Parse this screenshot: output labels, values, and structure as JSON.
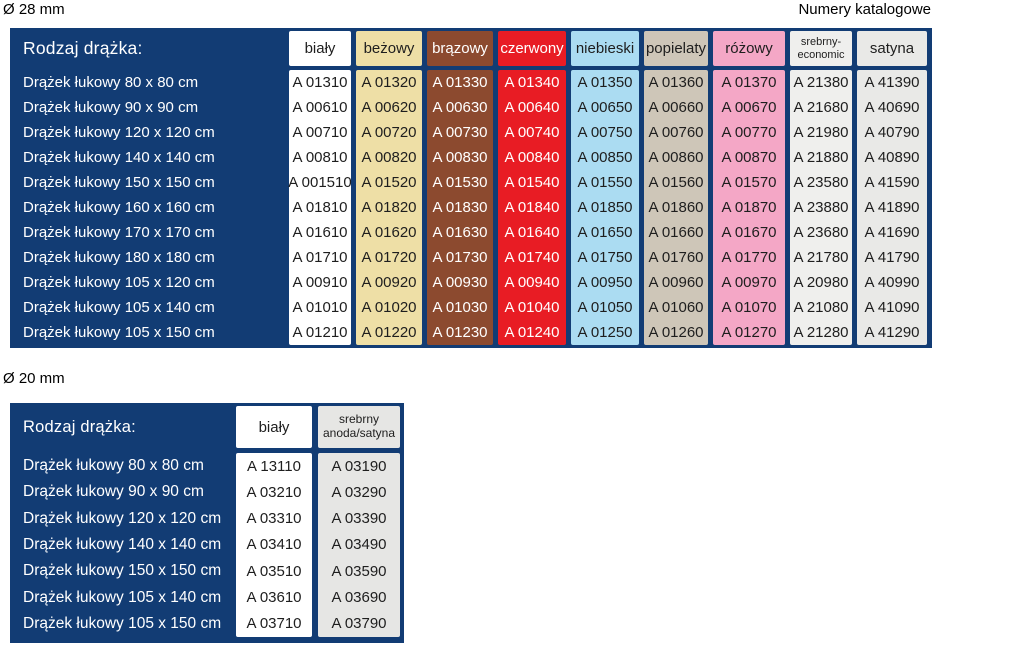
{
  "page": {
    "diameter_28_label": "Ø 28 mm",
    "diameter_20_label": "Ø 20 mm",
    "catalog_numbers_label": "Numery katalogowe"
  },
  "colors": {
    "table_background": "#123c74",
    "label_text": "#ffffff",
    "dark_cell_text": "#1e1e1e",
    "light_cell_text": "#ffffff"
  },
  "table_28mm": {
    "title": "Rodzaj drążka:",
    "row_labels": [
      "Drążek łukowy 80 x 80 cm",
      "Drążek łukowy 90 x 90 cm",
      "Drążek łukowy 120 x 120 cm",
      "Drążek łukowy 140 x 140 cm",
      "Drążek łukowy 150 x 150 cm",
      "Drążek łukowy 160 x 160 cm",
      "Drążek łukowy 170 x 170 cm",
      "Drążek łukowy 180 x 180 cm",
      "Drążek łukowy 105 x 120 cm",
      "Drążek łukowy 105 x 140 cm",
      "Drążek łukowy 105 x 150 cm"
    ],
    "columns": [
      {
        "id": "bialy",
        "label": "biały",
        "bg": "#ffffff",
        "text": "#1e1e1e",
        "small": false,
        "values": [
          "A 01310",
          "A 00610",
          "A 00710",
          "A 00810",
          "A 001510",
          "A 01810",
          "A 01610",
          "A 01710",
          "A 00910",
          "A 01010",
          "A 01210"
        ]
      },
      {
        "id": "bezowy",
        "label": "beżowy",
        "bg": "#eedfa6",
        "text": "#1e1e1e",
        "small": false,
        "values": [
          "A 01320",
          "A 00620",
          "A 00720",
          "A 00820",
          "A 01520",
          "A 01820",
          "A 01620",
          "A 01720",
          "A 00920",
          "A 01020",
          "A 01220"
        ]
      },
      {
        "id": "brazowy",
        "label": "brązowy",
        "bg": "#8c4a2f",
        "text": "#ffffff",
        "small": false,
        "values": [
          "A 01330",
          "A 00630",
          "A 00730",
          "A 00830",
          "A 01530",
          "A 01830",
          "A 01630",
          "A 01730",
          "A 00930",
          "A 01030",
          "A 01230"
        ]
      },
      {
        "id": "czerwony",
        "label": "czerwony",
        "bg": "#e81c24",
        "text": "#ffffff",
        "small": false,
        "values": [
          "A 01340",
          "A 00640",
          "A 00740",
          "A 00840",
          "A 01540",
          "A 01840",
          "A 01640",
          "A 01740",
          "A 00940",
          "A 01040",
          "A 01240"
        ]
      },
      {
        "id": "niebieski",
        "label": "niebieski",
        "bg": "#abdcf2",
        "text": "#1e1e1e",
        "small": false,
        "values": [
          "A 01350",
          "A 00650",
          "A 00750",
          "A 00850",
          "A 01550",
          "A 01850",
          "A 01650",
          "A 01750",
          "A 00950",
          "A 01050",
          "A 01250"
        ]
      },
      {
        "id": "popielaty",
        "label": "popielaty",
        "bg": "#cec6b8",
        "text": "#1e1e1e",
        "small": false,
        "values": [
          "A 01360",
          "A 00660",
          "A 00760",
          "A 00860",
          "A 01560",
          "A 01860",
          "A 01660",
          "A 01760",
          "A 00960",
          "A 01060",
          "A 01260"
        ]
      },
      {
        "id": "rozowy",
        "label": "różowy",
        "bg": "#f4a7c6",
        "text": "#1e1e1e",
        "small": false,
        "values": [
          "A 01370",
          "A 00670",
          "A 00770",
          "A 00870",
          "A 01570",
          "A 01870",
          "A 01670",
          "A 01770",
          "A 00970",
          "A 01070",
          "A 01270"
        ]
      },
      {
        "id": "srebrny-economic",
        "label": "srebrny-\neconomic",
        "bg": "#efefed",
        "text": "#1e1e1e",
        "small": true,
        "values": [
          "A 21380",
          "A 21680",
          "A 21980",
          "A 21880",
          "A 23580",
          "A 23880",
          "A 23680",
          "A 21780",
          "A 20980",
          "A 21080",
          "A 21280"
        ]
      },
      {
        "id": "satyna",
        "label": "satyna",
        "bg": "#e9e9e7",
        "text": "#1e1e1e",
        "small": false,
        "values": [
          "A 41390",
          "A 40690",
          "A 40790",
          "A 40890",
          "A 41590",
          "A 41890",
          "A 41690",
          "A 41790",
          "A 40990",
          "A 41090",
          "A 41290"
        ]
      }
    ]
  },
  "table_20mm": {
    "title": "Rodzaj drążka:",
    "row_labels": [
      "Drążek łukowy 80 x 80 cm",
      "Drążek łukowy 90 x 90 cm",
      "Drążek łukowy 120 x 120 cm",
      "Drążek łukowy 140 x 140 cm",
      "Drążek łukowy 150 x 150 cm",
      "Drążek łukowy 105 x 140 cm",
      "Drążek łukowy 105 x 150 cm"
    ],
    "columns": [
      {
        "id": "bialy",
        "label": "biały",
        "bg": "#ffffff",
        "text": "#1e1e1e",
        "small": false,
        "values": [
          "A 13110",
          "A 03210",
          "A 03310",
          "A 03410",
          "A 03510",
          "A 03610",
          "A 03710"
        ]
      },
      {
        "id": "srebrny-anoda-satyna",
        "label": "srebrny\nanoda/satyna",
        "bg": "#e6e6e4",
        "text": "#1e1e1e",
        "small": true,
        "values": [
          "A 03190",
          "A 03290",
          "A 03390",
          "A 03490",
          "A 03590",
          "A 03690",
          "A 03790"
        ]
      }
    ]
  }
}
